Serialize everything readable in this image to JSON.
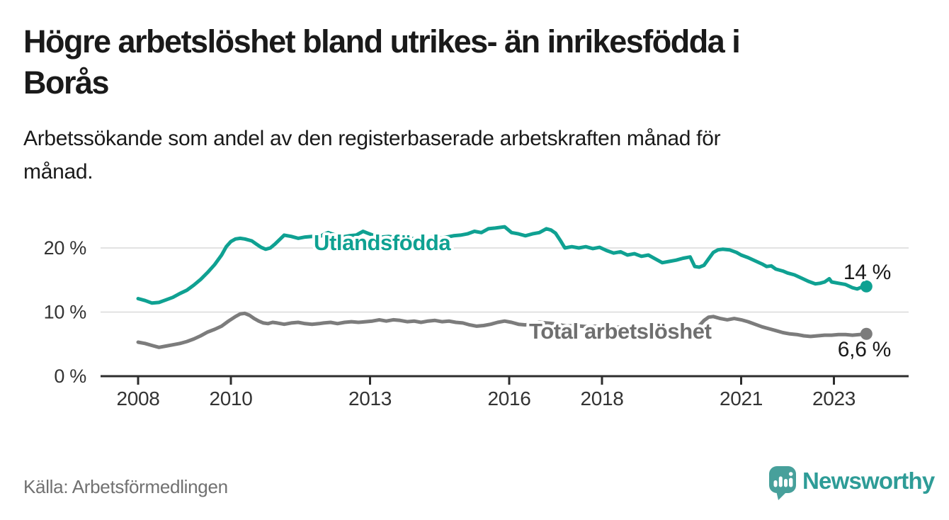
{
  "header": {
    "title_lines": [
      "Högre arbetslöshet bland utrikes- än inrikesfödda i",
      "Borås"
    ],
    "subtitle_lines": [
      "Arbetssökande som andel av den registerbaserade arbetskraften månad för",
      "månad."
    ]
  },
  "chart_data": {
    "type": "line",
    "title": "Högre arbetslöshet bland utrikes- än inrikesfödda i Borås",
    "subtitle": "Arbetssökande som andel av den registerbaserade arbetskraften månad för månad.",
    "xlabel": "",
    "ylabel": "",
    "x_unit": "year (decimal = month position)",
    "y_unit": "percent of registered labour force",
    "xlim": [
      2007.2,
      2024.6
    ],
    "ylim": [
      0,
      25.5
    ],
    "grid": "horizontal gridlines at 10 % and 20 %, dark baseline at 0 %",
    "legend_position": "labels drawn on the lines",
    "xticks": [
      {
        "v": 2008,
        "label": "2008"
      },
      {
        "v": 2010,
        "label": "2010"
      },
      {
        "v": 2013,
        "label": "2013"
      },
      {
        "v": 2016,
        "label": "2016"
      },
      {
        "v": 2018,
        "label": "2018"
      },
      {
        "v": 2021,
        "label": "2021"
      },
      {
        "v": 2023,
        "label": "2023"
      }
    ],
    "yticks": [
      {
        "v": 0,
        "label": "0 %"
      },
      {
        "v": 10,
        "label": "10 %"
      },
      {
        "v": 20,
        "label": "20 %"
      }
    ],
    "series": [
      {
        "name": "Utlandsfödda",
        "color": "#0fa192",
        "end_label": "14 %",
        "end_value": 14,
        "points": [
          [
            2008.0,
            12.1
          ],
          [
            2008.15,
            11.8
          ],
          [
            2008.3,
            11.4
          ],
          [
            2008.45,
            11.5
          ],
          [
            2008.6,
            11.9
          ],
          [
            2008.75,
            12.3
          ],
          [
            2008.9,
            12.9
          ],
          [
            2009.05,
            13.4
          ],
          [
            2009.2,
            14.2
          ],
          [
            2009.35,
            15.1
          ],
          [
            2009.5,
            16.2
          ],
          [
            2009.65,
            17.4
          ],
          [
            2009.8,
            18.9
          ],
          [
            2009.9,
            20.2
          ],
          [
            2010.0,
            21.0
          ],
          [
            2010.1,
            21.4
          ],
          [
            2010.2,
            21.5
          ],
          [
            2010.3,
            21.4
          ],
          [
            2010.45,
            21.1
          ],
          [
            2010.55,
            20.6
          ],
          [
            2010.65,
            20.1
          ],
          [
            2010.75,
            19.8
          ],
          [
            2010.85,
            20.0
          ],
          [
            2010.95,
            20.6
          ],
          [
            2011.05,
            21.3
          ],
          [
            2011.15,
            22.0
          ],
          [
            2011.3,
            21.8
          ],
          [
            2011.45,
            21.5
          ],
          [
            2011.6,
            21.7
          ],
          [
            2011.75,
            21.8
          ],
          [
            2011.9,
            21.7
          ],
          [
            2012.0,
            22.1
          ],
          [
            2012.1,
            22.4
          ],
          [
            2012.25,
            22.0
          ],
          [
            2012.4,
            21.7
          ],
          [
            2012.55,
            21.9
          ],
          [
            2012.7,
            22.0
          ],
          [
            2012.85,
            22.6
          ],
          [
            2012.95,
            22.3
          ],
          [
            2013.1,
            21.9
          ],
          [
            2013.25,
            21.7
          ],
          [
            2013.4,
            21.8
          ],
          [
            2013.55,
            21.6
          ],
          [
            2013.7,
            21.7
          ],
          [
            2013.85,
            21.5
          ],
          [
            2014.0,
            21.4
          ],
          [
            2014.2,
            21.3
          ],
          [
            2014.35,
            21.7
          ],
          [
            2014.5,
            21.5
          ],
          [
            2014.65,
            21.7
          ],
          [
            2014.8,
            21.9
          ],
          [
            2014.95,
            22.0
          ],
          [
            2015.1,
            22.2
          ],
          [
            2015.25,
            22.6
          ],
          [
            2015.4,
            22.4
          ],
          [
            2015.55,
            23.0
          ],
          [
            2015.7,
            23.1
          ],
          [
            2015.9,
            23.3
          ],
          [
            2016.05,
            22.4
          ],
          [
            2016.2,
            22.2
          ],
          [
            2016.35,
            21.9
          ],
          [
            2016.5,
            22.2
          ],
          [
            2016.65,
            22.4
          ],
          [
            2016.8,
            23.0
          ],
          [
            2016.9,
            22.8
          ],
          [
            2017.0,
            22.3
          ],
          [
            2017.1,
            21.2
          ],
          [
            2017.2,
            20.0
          ],
          [
            2017.35,
            20.2
          ],
          [
            2017.5,
            20.0
          ],
          [
            2017.65,
            20.2
          ],
          [
            2017.8,
            19.9
          ],
          [
            2017.95,
            20.1
          ],
          [
            2018.1,
            19.6
          ],
          [
            2018.25,
            19.2
          ],
          [
            2018.4,
            19.4
          ],
          [
            2018.55,
            18.9
          ],
          [
            2018.7,
            19.1
          ],
          [
            2018.85,
            18.7
          ],
          [
            2019.0,
            18.9
          ],
          [
            2019.15,
            18.3
          ],
          [
            2019.3,
            17.7
          ],
          [
            2019.45,
            17.9
          ],
          [
            2019.6,
            18.1
          ],
          [
            2019.75,
            18.4
          ],
          [
            2019.9,
            18.6
          ],
          [
            2020.0,
            17.1
          ],
          [
            2020.1,
            17.0
          ],
          [
            2020.2,
            17.3
          ],
          [
            2020.3,
            18.3
          ],
          [
            2020.4,
            19.3
          ],
          [
            2020.5,
            19.7
          ],
          [
            2020.6,
            19.8
          ],
          [
            2020.75,
            19.7
          ],
          [
            2020.9,
            19.3
          ],
          [
            2021.0,
            18.9
          ],
          [
            2021.15,
            18.5
          ],
          [
            2021.3,
            18.0
          ],
          [
            2021.45,
            17.5
          ],
          [
            2021.55,
            17.1
          ],
          [
            2021.65,
            17.2
          ],
          [
            2021.75,
            16.7
          ],
          [
            2021.9,
            16.4
          ],
          [
            2022.0,
            16.1
          ],
          [
            2022.15,
            15.8
          ],
          [
            2022.3,
            15.3
          ],
          [
            2022.45,
            14.8
          ],
          [
            2022.6,
            14.4
          ],
          [
            2022.7,
            14.5
          ],
          [
            2022.8,
            14.7
          ],
          [
            2022.9,
            15.2
          ],
          [
            2022.95,
            14.7
          ],
          [
            2023.1,
            14.5
          ],
          [
            2023.25,
            14.3
          ],
          [
            2023.4,
            13.8
          ],
          [
            2023.5,
            13.6
          ],
          [
            2023.6,
            13.9
          ],
          [
            2023.7,
            14.0
          ]
        ]
      },
      {
        "name": "Total arbetslöshet",
        "color": "#7c7c7c",
        "end_label": "6,6 %",
        "end_value": 6.6,
        "points": [
          [
            2008.0,
            5.3
          ],
          [
            2008.15,
            5.1
          ],
          [
            2008.3,
            4.8
          ],
          [
            2008.45,
            4.5
          ],
          [
            2008.6,
            4.7
          ],
          [
            2008.75,
            4.9
          ],
          [
            2008.9,
            5.1
          ],
          [
            2009.05,
            5.4
          ],
          [
            2009.2,
            5.8
          ],
          [
            2009.35,
            6.3
          ],
          [
            2009.5,
            6.9
          ],
          [
            2009.65,
            7.3
          ],
          [
            2009.8,
            7.8
          ],
          [
            2009.95,
            8.6
          ],
          [
            2010.1,
            9.3
          ],
          [
            2010.2,
            9.7
          ],
          [
            2010.3,
            9.8
          ],
          [
            2010.4,
            9.5
          ],
          [
            2010.5,
            9.0
          ],
          [
            2010.6,
            8.6
          ],
          [
            2010.7,
            8.3
          ],
          [
            2010.8,
            8.2
          ],
          [
            2010.9,
            8.4
          ],
          [
            2011.0,
            8.3
          ],
          [
            2011.15,
            8.1
          ],
          [
            2011.3,
            8.3
          ],
          [
            2011.45,
            8.4
          ],
          [
            2011.6,
            8.2
          ],
          [
            2011.75,
            8.1
          ],
          [
            2011.9,
            8.2
          ],
          [
            2012.0,
            8.3
          ],
          [
            2012.15,
            8.4
          ],
          [
            2012.3,
            8.2
          ],
          [
            2012.45,
            8.4
          ],
          [
            2012.6,
            8.5
          ],
          [
            2012.75,
            8.4
          ],
          [
            2012.9,
            8.5
          ],
          [
            2013.05,
            8.6
          ],
          [
            2013.2,
            8.8
          ],
          [
            2013.35,
            8.6
          ],
          [
            2013.5,
            8.8
          ],
          [
            2013.65,
            8.7
          ],
          [
            2013.8,
            8.5
          ],
          [
            2013.95,
            8.6
          ],
          [
            2014.1,
            8.4
          ],
          [
            2014.25,
            8.6
          ],
          [
            2014.4,
            8.7
          ],
          [
            2014.55,
            8.5
          ],
          [
            2014.7,
            8.6
          ],
          [
            2014.85,
            8.4
          ],
          [
            2015.0,
            8.3
          ],
          [
            2015.15,
            8.0
          ],
          [
            2015.3,
            7.8
          ],
          [
            2015.45,
            7.9
          ],
          [
            2015.6,
            8.1
          ],
          [
            2015.75,
            8.4
          ],
          [
            2015.9,
            8.6
          ],
          [
            2016.05,
            8.4
          ],
          [
            2016.2,
            8.1
          ],
          [
            2016.35,
            8.0
          ],
          [
            2016.5,
            8.2
          ],
          [
            2016.65,
            8.4
          ],
          [
            2016.8,
            8.3
          ],
          [
            2016.95,
            8.2
          ],
          [
            2017.1,
            8.0
          ],
          [
            2017.25,
            7.8
          ],
          [
            2017.4,
            7.9
          ],
          [
            2017.55,
            7.8
          ],
          [
            2017.7,
            7.7
          ],
          [
            2017.85,
            7.8
          ],
          [
            2018.0,
            7.7
          ],
          [
            2018.15,
            7.5
          ],
          [
            2018.3,
            7.6
          ],
          [
            2018.45,
            7.7
          ],
          [
            2018.6,
            7.5
          ],
          [
            2018.75,
            7.4
          ],
          [
            2018.9,
            7.5
          ],
          [
            2019.05,
            7.3
          ],
          [
            2019.2,
            7.4
          ],
          [
            2019.35,
            7.3
          ],
          [
            2019.5,
            7.4
          ],
          [
            2019.65,
            7.3
          ],
          [
            2019.8,
            7.2
          ],
          [
            2019.95,
            7.3
          ],
          [
            2020.1,
            7.9
          ],
          [
            2020.2,
            8.7
          ],
          [
            2020.3,
            9.2
          ],
          [
            2020.4,
            9.3
          ],
          [
            2020.55,
            9.0
          ],
          [
            2020.7,
            8.8
          ],
          [
            2020.85,
            9.0
          ],
          [
            2021.0,
            8.8
          ],
          [
            2021.15,
            8.5
          ],
          [
            2021.3,
            8.1
          ],
          [
            2021.45,
            7.7
          ],
          [
            2021.6,
            7.4
          ],
          [
            2021.75,
            7.1
          ],
          [
            2021.9,
            6.8
          ],
          [
            2022.05,
            6.6
          ],
          [
            2022.2,
            6.5
          ],
          [
            2022.35,
            6.3
          ],
          [
            2022.5,
            6.2
          ],
          [
            2022.65,
            6.3
          ],
          [
            2022.8,
            6.4
          ],
          [
            2022.95,
            6.4
          ],
          [
            2023.1,
            6.5
          ],
          [
            2023.25,
            6.5
          ],
          [
            2023.4,
            6.4
          ],
          [
            2023.55,
            6.5
          ],
          [
            2023.7,
            6.6
          ]
        ]
      }
    ]
  },
  "footer": {
    "source": "Källa: Arbetsförmedlingen",
    "logo_text": "Newsworthy"
  },
  "colors": {
    "teal": "#0fa192",
    "gray-line": "#7c7c7c",
    "gray-label": "#6f6f6f",
    "ink": "#1a1a1a",
    "axis-text": "#333333",
    "axis-line": "#2d2d2d",
    "grid-line": "#d9d9d9",
    "source-gray": "#717171",
    "logo-teal": "#2e9c97",
    "logo-bubble": "#47a09b"
  }
}
